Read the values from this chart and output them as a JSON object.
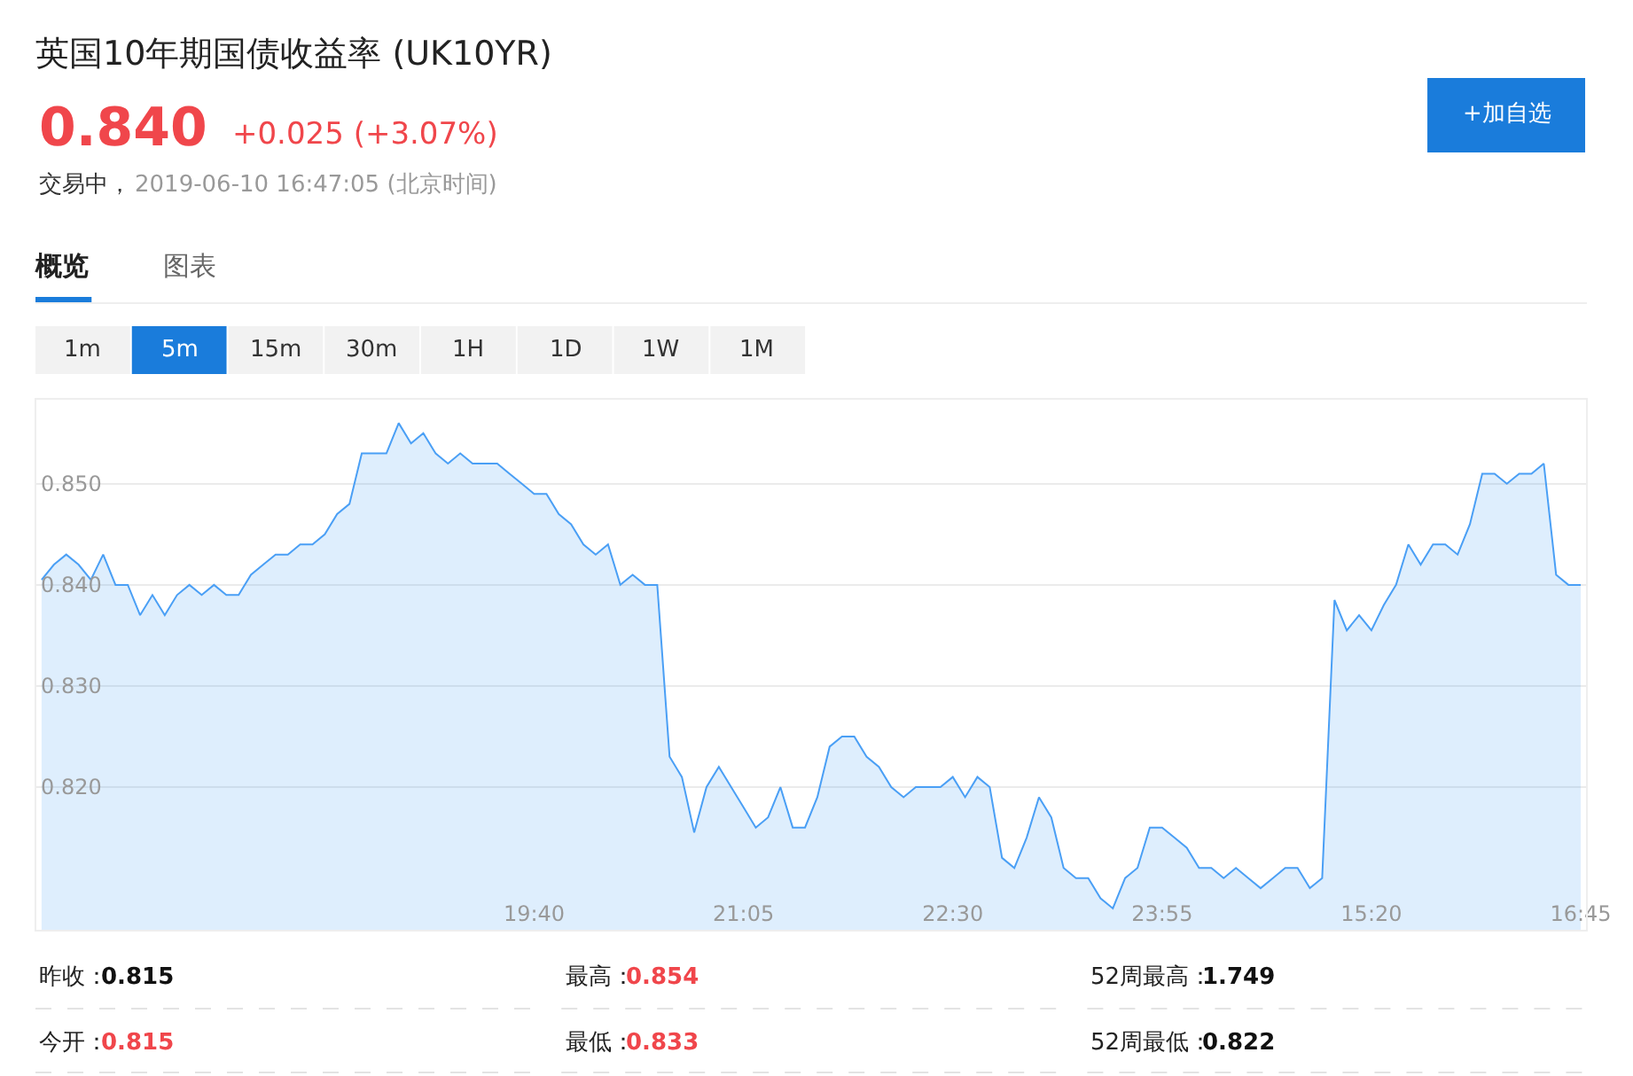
{
  "chart_data": {
    "type": "area",
    "title": "英国10年期国债收益率 (UK10YR)",
    "annotations": [
      "0.840",
      "+0.025 (+3.07%)",
      "交易中，",
      "2019-06-10 16:47:05 (北京时间)",
      "+加自选",
      "概览",
      "图表",
      "1m",
      "5m",
      "15m",
      "30m",
      "1H",
      "1D",
      "1W",
      "1M",
      "昨收：",
      "0.815",
      "最高：",
      "0.854",
      "52周最高：",
      "1.749",
      "今开：",
      "0.815",
      "最低：",
      "0.833",
      "52周最低：",
      "0.822"
    ],
    "categories": [
      null,
      null,
      null,
      null,
      null,
      null,
      null,
      null,
      null,
      null,
      null,
      null,
      null,
      null,
      null,
      null,
      null,
      null,
      null,
      null,
      null,
      null,
      null,
      null,
      null,
      null,
      null,
      null,
      null,
      null,
      null,
      null,
      null,
      null,
      null,
      null,
      null,
      null,
      null,
      null,
      "19:40",
      null,
      null,
      null,
      null,
      null,
      null,
      null,
      null,
      null,
      null,
      null,
      null,
      null,
      null,
      null,
      null,
      "21:05",
      null,
      null,
      null,
      null,
      null,
      null,
      null,
      null,
      null,
      null,
      null,
      null,
      null,
      null,
      null,
      null,
      "22:30",
      null,
      null,
      null,
      null,
      null,
      null,
      null,
      null,
      null,
      null,
      null,
      null,
      null,
      null,
      null,
      null,
      "23:55",
      null,
      null,
      null,
      null,
      null,
      null,
      null,
      null,
      null,
      null,
      null,
      null,
      null,
      null,
      null,
      null,
      "15:20",
      null,
      null,
      null,
      null,
      null,
      null,
      null,
      null,
      null,
      null,
      null,
      null,
      null,
      null,
      null,
      null,
      "16:45"
    ],
    "values": [
      0.8405,
      0.842,
      0.843,
      0.842,
      0.8405,
      0.843,
      0.84,
      0.84,
      0.837,
      0.839,
      0.837,
      0.839,
      0.84,
      0.839,
      0.84,
      0.839,
      0.839,
      0.841,
      0.842,
      0.843,
      0.843,
      0.844,
      0.844,
      0.845,
      0.847,
      0.848,
      0.853,
      0.853,
      0.853,
      0.856,
      0.854,
      0.855,
      0.853,
      0.852,
      0.853,
      0.852,
      0.852,
      0.852,
      0.851,
      0.85,
      0.849,
      0.849,
      0.847,
      0.846,
      0.844,
      0.843,
      0.844,
      0.84,
      0.841,
      0.84,
      0.84,
      0.823,
      0.821,
      0.8155,
      0.82,
      0.822,
      0.82,
      0.818,
      0.816,
      0.817,
      0.82,
      0.816,
      0.816,
      0.819,
      0.824,
      0.825,
      0.825,
      0.823,
      0.822,
      0.82,
      0.819,
      0.82,
      0.82,
      0.82,
      0.821,
      0.819,
      0.821,
      0.82,
      0.813,
      0.812,
      0.815,
      0.819,
      0.817,
      0.812,
      0.811,
      0.811,
      0.809,
      0.808,
      0.811,
      0.812,
      0.816,
      0.816,
      0.815,
      0.814,
      0.812,
      0.812,
      0.811,
      0.812,
      0.811,
      0.81,
      0.811,
      0.812,
      0.812,
      0.81,
      0.811,
      0.8385,
      0.8355,
      0.837,
      0.8355,
      0.838,
      0.84,
      0.844,
      0.842,
      0.844,
      0.844,
      0.843,
      0.846,
      0.851,
      0.851,
      0.85,
      0.851,
      0.851,
      0.852,
      0.841,
      0.84,
      0.84
    ],
    "color": "#4a9ff5",
    "ylim": [
      0.8058,
      0.8584
    ],
    "yticks": [
      {
        "value": 0.82,
        "label": "0.820"
      },
      {
        "value": 0.83,
        "label": "0.830"
      },
      {
        "value": 0.84,
        "label": "0.840"
      },
      {
        "value": 0.85,
        "label": "0.850"
      }
    ],
    "grid": "y",
    "legend": false,
    "marker": "none",
    "line_style": "solid"
  }
}
